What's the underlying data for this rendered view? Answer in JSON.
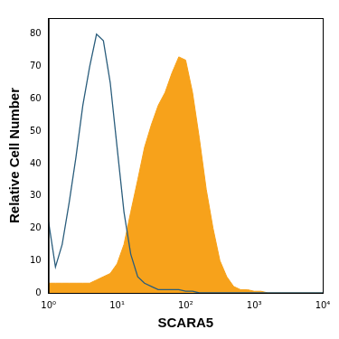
{
  "chart_data": {
    "type": "line",
    "x_label": "SCARA5",
    "y_label": "Relative Cell Number",
    "x": [
      1,
      1.26,
      1.58,
      2,
      2.51,
      3.16,
      3.98,
      5.01,
      6.31,
      7.94,
      10,
      12.6,
      15.8,
      20,
      25.1,
      31.6,
      39.8,
      50.1,
      63.1,
      79.4,
      100,
      126,
      158,
      200,
      251,
      316,
      398,
      501,
      631,
      794,
      1000,
      1259,
      1585,
      1995,
      2512,
      3162,
      3981,
      5012,
      6310,
      7943,
      10000
    ],
    "series": [
      {
        "type": "line",
        "color": "#2a5d7c",
        "values": [
          22,
          8,
          15,
          28,
          42,
          58,
          70,
          80,
          78,
          65,
          45,
          25,
          12,
          5,
          3,
          2,
          1,
          1,
          1,
          1,
          0.5,
          0.5,
          0,
          0,
          0,
          0,
          0,
          0,
          0,
          0,
          0,
          0,
          0,
          0,
          0,
          0,
          0,
          0,
          0,
          0,
          0
        ]
      },
      {
        "type": "area",
        "color": "#f7a21b",
        "values": [
          3,
          3,
          3,
          3,
          3,
          3,
          3,
          4,
          5,
          6,
          9,
          15,
          25,
          35,
          45,
          52,
          58,
          62,
          68,
          73,
          72,
          62,
          48,
          32,
          20,
          10,
          5,
          2,
          1,
          1,
          0.5,
          0.5,
          0,
          0,
          0,
          0,
          0,
          0,
          0,
          0,
          0
        ]
      }
    ],
    "log": "x",
    "xlim": [
      1,
      10000
    ],
    "xticks": [
      {
        "value": 1,
        "label": "10⁰"
      },
      {
        "value": 10,
        "label": "10¹"
      },
      {
        "value": 100,
        "label": "10²"
      },
      {
        "value": 1000,
        "label": "10³"
      },
      {
        "value": 10000,
        "label": "10⁴"
      }
    ],
    "ylim": [
      0,
      85
    ],
    "yticks": [
      0,
      10,
      20,
      30,
      40,
      50,
      60,
      70,
      80
    ],
    "grid": false
  }
}
